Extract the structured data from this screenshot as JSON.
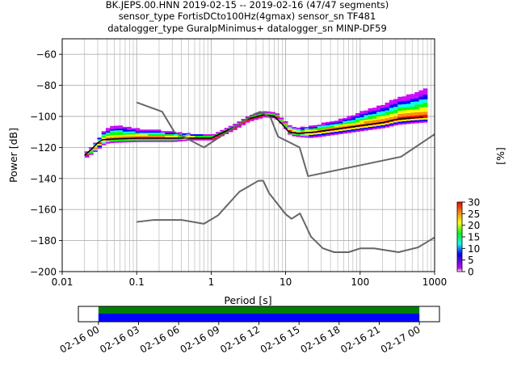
{
  "title_lines": [
    "BK.JEPS.00.HNN   2019-02-15 -- 2019-02-16  (47/47 segments)",
    "sensor_type FortisDCto100Hz(4gmax) sensor_sn TF481",
    "datalogger_type GuralpMinimus+ datalogger_sn MINP-DF59"
  ],
  "chart_data": {
    "type": "heatmap",
    "xlabel": "Period [s]",
    "ylabel": "Power [dB]",
    "xscale": "log",
    "xlim": [
      0.01,
      1000
    ],
    "ylim": [
      -200,
      -50
    ],
    "x_ticks": [
      0.01,
      0.1,
      1,
      10,
      100,
      1000
    ],
    "x_tick_labels": [
      "0.01",
      "0.1",
      "1",
      "10",
      "100",
      "1000"
    ],
    "y_ticks": [
      -200,
      -180,
      -160,
      -140,
      -120,
      -100,
      -80,
      -60
    ],
    "y_tick_labels": [
      "−200",
      "−180",
      "−160",
      "−140",
      "−120",
      "−100",
      "−80",
      "−60"
    ],
    "grid": true,
    "colorbar": {
      "label": "[%]",
      "range": [
        0,
        30
      ],
      "ticks": [
        0,
        5,
        10,
        15,
        20,
        25,
        30
      ],
      "tick_labels": [
        "0",
        "5",
        "10",
        "15",
        "20",
        "25",
        "30"
      ]
    },
    "noise_models": [
      {
        "points": [
          [
            0.1,
            -91
          ],
          [
            0.22,
            -97
          ],
          [
            0.32,
            -110
          ],
          [
            0.8,
            -120
          ],
          [
            3.8,
            -98.5
          ],
          [
            4.6,
            -97
          ],
          [
            6.3,
            -101
          ],
          [
            7.9,
            -113
          ],
          [
            15.4,
            -120
          ],
          [
            20,
            -138.5
          ],
          [
            354,
            -126
          ],
          [
            1000,
            -111.5
          ]
        ]
      },
      {
        "points": [
          [
            0.1,
            -168
          ],
          [
            0.17,
            -166.7
          ],
          [
            0.4,
            -166.7
          ],
          [
            0.8,
            -169.2
          ],
          [
            1.24,
            -163.7
          ],
          [
            2.4,
            -148.5
          ],
          [
            4.3,
            -141.5
          ],
          [
            5,
            -141.5
          ],
          [
            6,
            -149.5
          ],
          [
            10,
            -163
          ],
          [
            12,
            -166
          ],
          [
            15.6,
            -162.5
          ],
          [
            21.9,
            -177.5
          ],
          [
            31.6,
            -185
          ],
          [
            45,
            -187.5
          ],
          [
            70,
            -187.5
          ],
          [
            101,
            -185
          ],
          [
            154,
            -185
          ],
          [
            328,
            -187.5
          ],
          [
            600,
            -184.4
          ],
          [
            1000,
            -178
          ]
        ]
      }
    ],
    "ppsd_mode_curve": {
      "points": [
        [
          0.02,
          -125
        ],
        [
          0.025,
          -121
        ],
        [
          0.03,
          -117
        ],
        [
          0.035,
          -115
        ],
        [
          0.05,
          -114.5
        ],
        [
          0.1,
          -114
        ],
        [
          0.5,
          -114
        ],
        [
          1,
          -114
        ],
        [
          2,
          -107
        ],
        [
          3,
          -102
        ],
        [
          5,
          -99
        ],
        [
          7,
          -100
        ],
        [
          9,
          -105
        ],
        [
          11,
          -110
        ],
        [
          15,
          -111
        ],
        [
          25,
          -110
        ],
        [
          50,
          -108
        ],
        [
          100,
          -106
        ],
        [
          200,
          -104
        ],
        [
          300,
          -102
        ],
        [
          500,
          -101
        ],
        [
          700,
          -100.5
        ]
      ]
    },
    "ppsd_spread": {
      "percent_range": [
        0,
        30
      ],
      "points": [
        [
          0.02,
          2,
          1
        ],
        [
          0.03,
          4,
          3
        ],
        [
          0.04,
          8,
          2
        ],
        [
          0.06,
          8,
          2
        ],
        [
          0.1,
          6,
          2
        ],
        [
          0.2,
          5,
          2
        ],
        [
          0.3,
          4,
          2
        ],
        [
          0.5,
          3,
          1
        ],
        [
          1,
          2,
          1
        ],
        [
          2,
          2,
          1
        ],
        [
          4,
          2,
          1
        ],
        [
          6,
          2,
          1
        ],
        [
          8,
          2,
          1
        ],
        [
          10,
          3,
          2
        ],
        [
          15,
          4,
          2
        ],
        [
          20,
          4,
          3
        ],
        [
          30,
          5,
          3
        ],
        [
          50,
          6,
          3
        ],
        [
          80,
          8,
          3
        ],
        [
          120,
          10,
          3
        ],
        [
          200,
          12,
          3
        ],
        [
          300,
          14,
          3
        ],
        [
          500,
          16,
          3
        ],
        [
          700,
          18,
          3
        ]
      ]
    }
  },
  "timeline": {
    "tick_labels": [
      "02-16 00",
      "02-16 03",
      "02-16 06",
      "02-16 09",
      "02-16 12",
      "02-16 15",
      "02-16 18",
      "02-16 21",
      "02-17 00"
    ],
    "range_hours": [
      -1.5,
      25.5
    ],
    "coverage_start_hour": 0,
    "coverage_end_hour": 24,
    "coverage_colors": [
      "#008000",
      "#0000ff"
    ]
  },
  "colors": {
    "noise_model": "#666666",
    "mode_curve": "#000000",
    "heat_colormap": [
      "#ffffff",
      "#cc00ff",
      "#0000ff",
      "#00ffff",
      "#00ff00",
      "#ffff00",
      "#ff8800",
      "#ff0000"
    ]
  }
}
